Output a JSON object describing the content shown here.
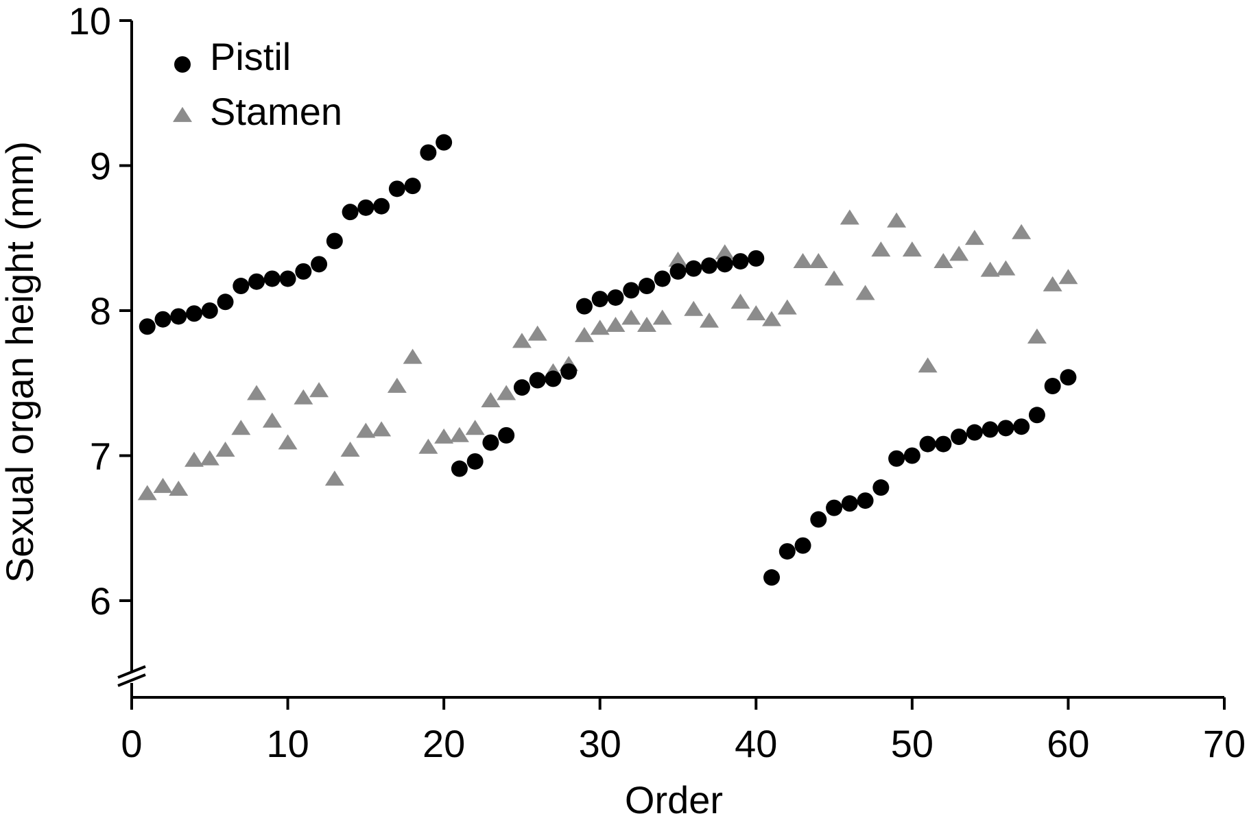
{
  "chart_data": {
    "type": "scatter",
    "title": "",
    "xlabel": "Order",
    "ylabel": "Sexual organ height (mm)",
    "xlim": [
      0,
      70
    ],
    "ylim": [
      5.5,
      10
    ],
    "x_ticks": [
      0,
      10,
      20,
      30,
      40,
      50,
      60,
      70
    ],
    "y_ticks": [
      6,
      7,
      8,
      9,
      10
    ],
    "y_axis_break": true,
    "grid": false,
    "legend_position": "top-left",
    "series": [
      {
        "name": "Pistil",
        "marker": "circle",
        "color": "#000000",
        "x": [
          1,
          2,
          3,
          4,
          5,
          6,
          7,
          8,
          9,
          10,
          11,
          12,
          13,
          14,
          15,
          16,
          17,
          18,
          19,
          20,
          21,
          22,
          23,
          24,
          25,
          26,
          27,
          28,
          29,
          30,
          31,
          32,
          33,
          34,
          35,
          36,
          37,
          38,
          39,
          40,
          41,
          42,
          43,
          44,
          45,
          46,
          47,
          48,
          49,
          50,
          51,
          52,
          53,
          54,
          55,
          56,
          57,
          58,
          59,
          60
        ],
        "y": [
          7.89,
          7.94,
          7.96,
          7.98,
          8.0,
          8.06,
          8.17,
          8.2,
          8.22,
          8.22,
          8.27,
          8.32,
          8.48,
          8.68,
          8.71,
          8.72,
          8.84,
          8.86,
          9.09,
          9.16,
          6.91,
          6.96,
          7.09,
          7.14,
          7.47,
          7.52,
          7.53,
          7.58,
          8.03,
          8.08,
          8.09,
          8.14,
          8.17,
          8.22,
          8.27,
          8.29,
          8.31,
          8.32,
          8.34,
          8.36,
          6.16,
          6.34,
          6.38,
          6.56,
          6.64,
          6.67,
          6.69,
          6.78,
          6.98,
          7.0,
          7.08,
          7.08,
          7.13,
          7.16,
          7.18,
          7.19,
          7.2,
          7.28,
          7.48,
          7.54
        ]
      },
      {
        "name": "Stamen",
        "marker": "triangle",
        "color": "#8c8c8c",
        "x": [
          1,
          2,
          3,
          4,
          5,
          6,
          7,
          8,
          9,
          10,
          11,
          12,
          13,
          14,
          15,
          16,
          17,
          18,
          19,
          20,
          21,
          22,
          23,
          24,
          25,
          26,
          27,
          28,
          29,
          30,
          31,
          32,
          33,
          34,
          35,
          36,
          37,
          38,
          39,
          40,
          41,
          42,
          43,
          44,
          45,
          46,
          47,
          48,
          49,
          50,
          51,
          52,
          53,
          54,
          55,
          56,
          57,
          58,
          59,
          60
        ],
        "y": [
          6.74,
          6.79,
          6.77,
          6.97,
          6.98,
          7.04,
          7.19,
          7.43,
          7.24,
          7.09,
          7.4,
          7.45,
          6.84,
          7.04,
          7.17,
          7.18,
          7.48,
          7.68,
          7.06,
          7.13,
          7.14,
          7.19,
          7.38,
          7.43,
          7.79,
          7.84,
          7.58,
          7.63,
          7.83,
          7.88,
          7.9,
          7.95,
          7.9,
          7.95,
          8.35,
          8.01,
          7.93,
          8.4,
          8.06,
          7.98,
          7.94,
          8.02,
          8.34,
          8.34,
          8.22,
          8.64,
          8.12,
          8.42,
          8.62,
          8.42,
          7.62,
          8.34,
          8.39,
          8.5,
          8.28,
          8.29,
          8.54,
          7.82,
          8.18,
          8.23
        ]
      }
    ]
  }
}
